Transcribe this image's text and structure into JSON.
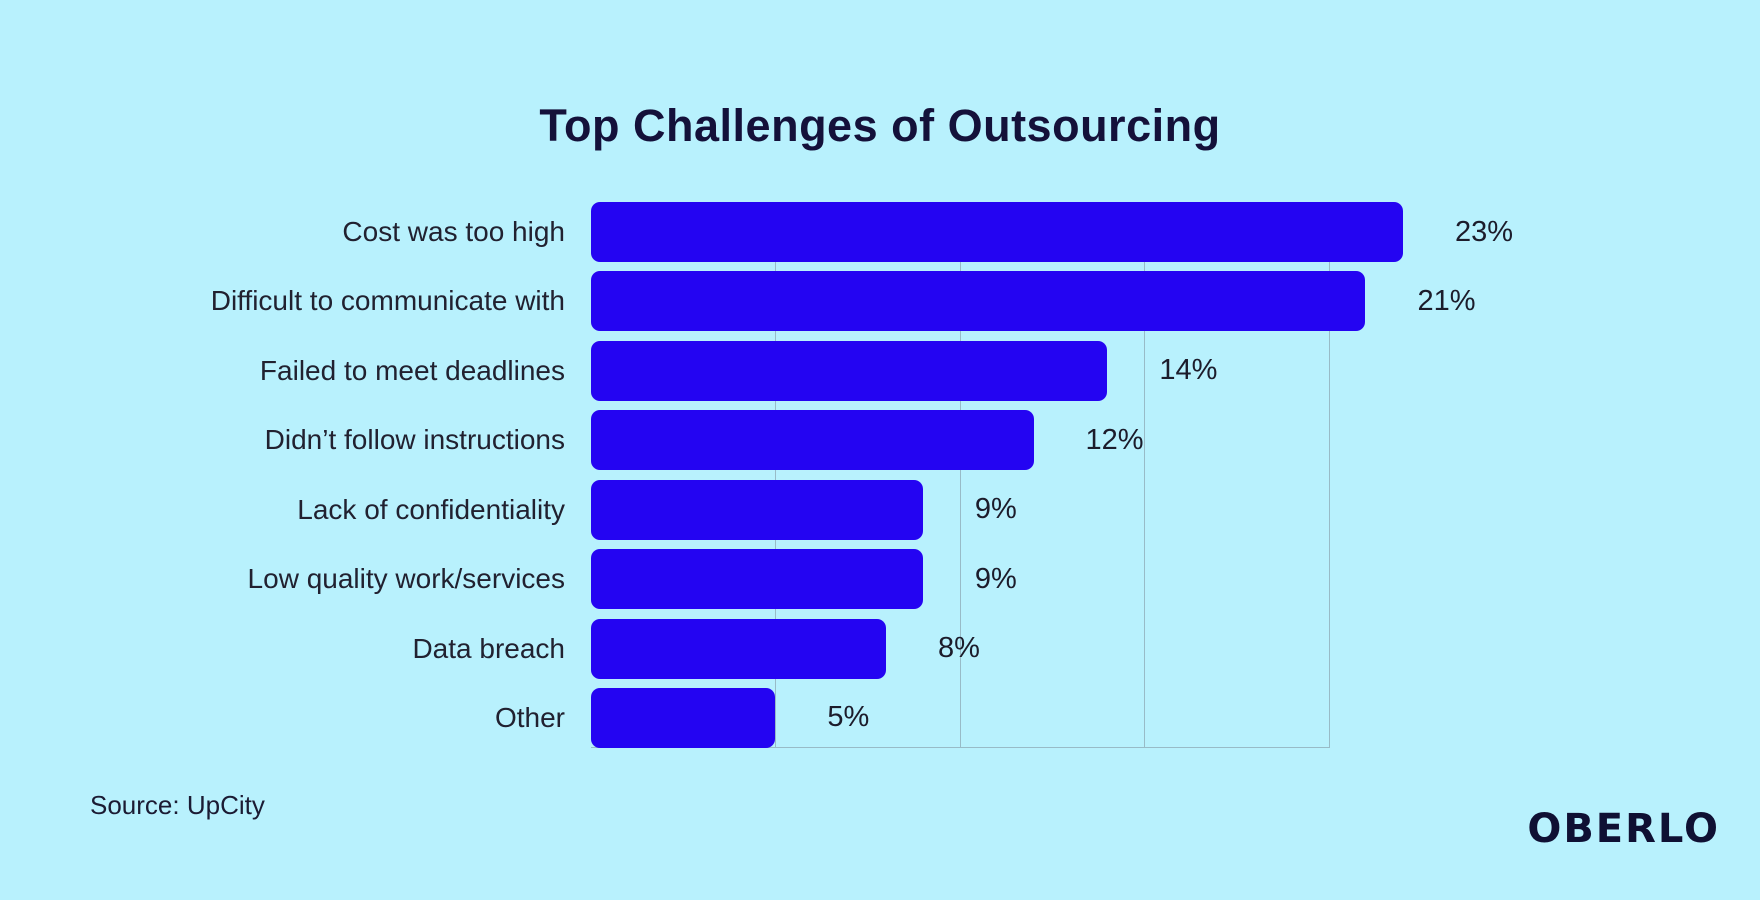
{
  "title": "Top Challenges of Outsourcing",
  "source": "Source: UpCity",
  "brand": "OBERLO",
  "colors": {
    "background": "#b8f1fd",
    "bar": "#2404f2",
    "title_text": "#14113a",
    "label_text": "#212130",
    "gridline": "#98bbc7"
  },
  "chart_data": {
    "type": "bar",
    "orientation": "horizontal",
    "title": "Top Challenges of Outsourcing",
    "xlabel": "",
    "ylabel": "",
    "xlim": [
      0,
      25
    ],
    "grid": true,
    "gridline_values": [
      5,
      10,
      15,
      20
    ],
    "categories": [
      "Cost was too high",
      "Difficult to communicate with",
      "Failed to meet deadlines",
      "Didn’t follow instructions",
      "Lack of confidentiality",
      "Low quality work/services",
      "Data breach",
      "Other"
    ],
    "values": [
      23,
      21,
      14,
      12,
      9,
      9,
      8,
      5
    ],
    "value_labels": [
      "23%",
      "21%",
      "14%",
      "12%",
      "9%",
      "9%",
      "8%",
      "5%"
    ]
  }
}
